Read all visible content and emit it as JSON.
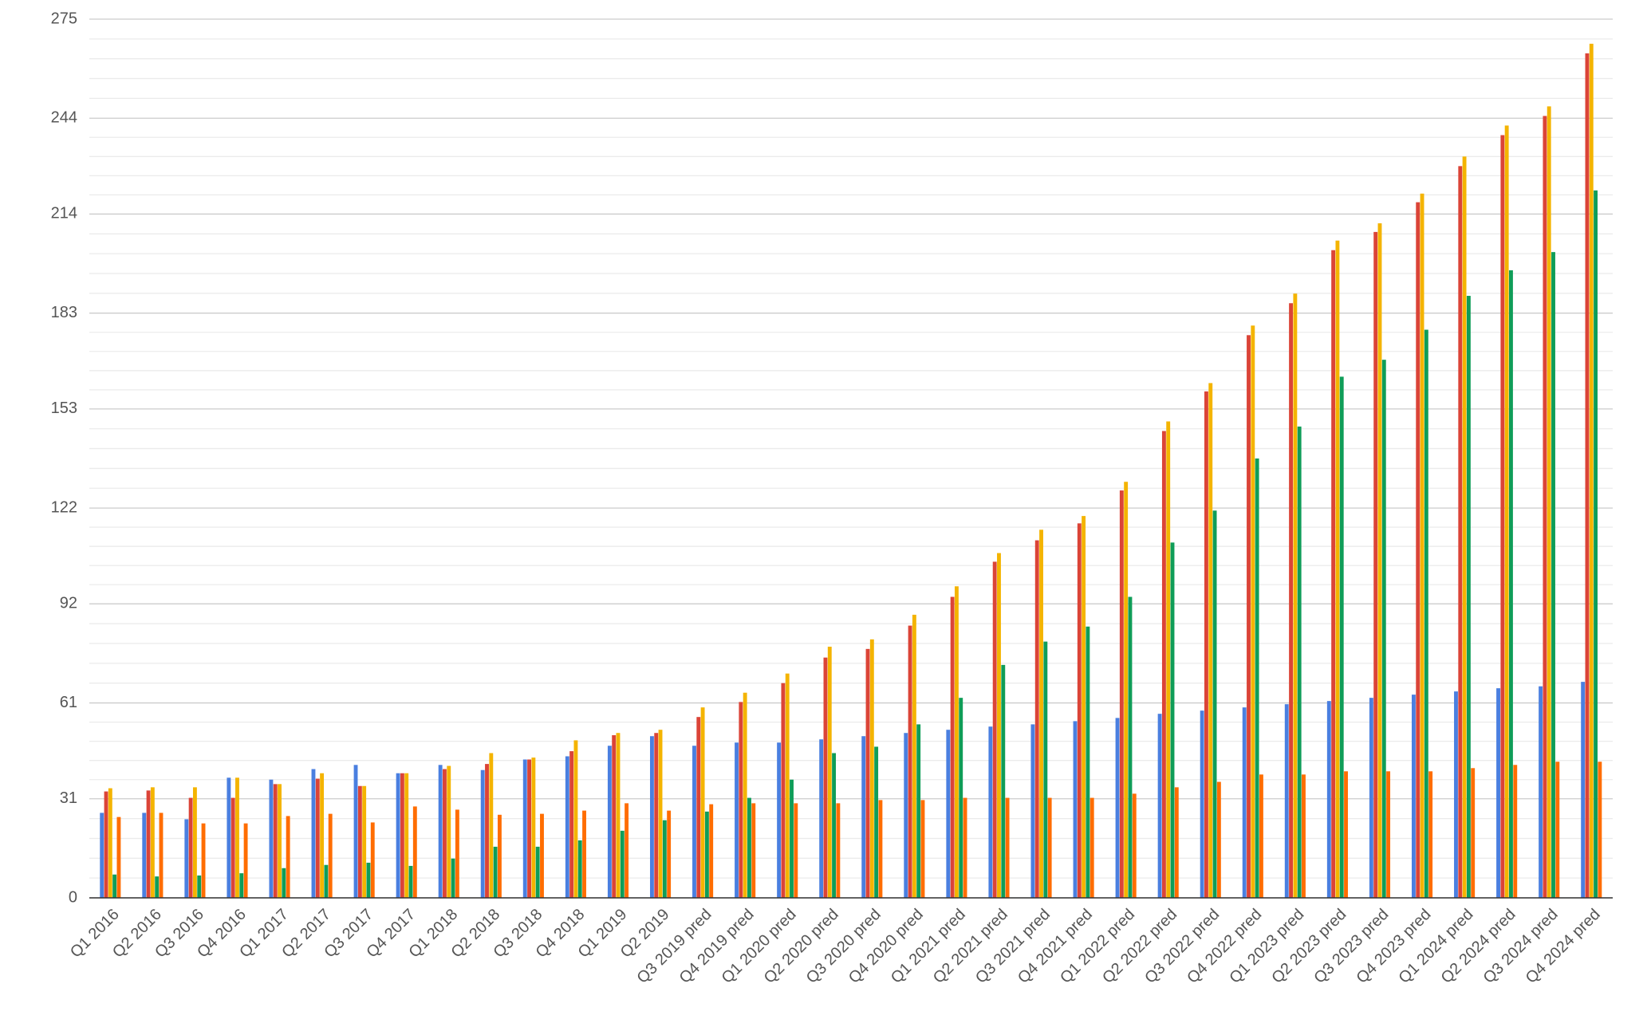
{
  "chart_data": {
    "type": "bar",
    "categories": [
      "Q1 2016",
      "Q2 2016",
      "Q3 2016",
      "Q4 2016",
      "Q1 2017",
      "Q2 2017",
      "Q3 2017",
      "Q4 2017",
      "Q1 2018",
      "Q2 2018",
      "Q3 2018",
      "Q4 2018",
      "Q1 2019",
      "Q2 2019",
      "Q3 2019 pred",
      "Q4 2019 pred",
      "Q1 2020 pred",
      "Q2 2020 pred",
      "Q3 2020 pred",
      "Q4 2020 pred",
      "Q1 2021 pred",
      "Q2 2021 pred",
      "Q3 2021 pred",
      "Q4 2021 pred",
      "Q1 2022 pred",
      "Q2 2022 pred",
      "Q3 2022 pred",
      "Q4 2022 pred",
      "Q1 2023 pred",
      "Q2 2023 pred",
      "Q3 2023 pred",
      "Q4 2023 pred",
      "Q1 2024 pred",
      "Q2 2024 pred",
      "Q3 2024 pred",
      "Q4 2024 pred"
    ],
    "series": [
      {
        "color": "#4a7fe0",
        "values": [
          26.6,
          26.6,
          24.6,
          37.6,
          37.0,
          40.3,
          41.6,
          39.0,
          41.6,
          40.0,
          43.3,
          44.3,
          47.6,
          50.6,
          47.6,
          48.6,
          48.6,
          49.6,
          50.6,
          51.6,
          52.6,
          53.6,
          54.3,
          55.3,
          56.3,
          57.6,
          58.6,
          59.6,
          60.6,
          61.6,
          62.6,
          63.6,
          64.6,
          65.6,
          66.2,
          67.6
        ]
      },
      {
        "color": "#db4437",
        "values": [
          33.3,
          33.6,
          31.3,
          31.3,
          35.6,
          37.3,
          35.0,
          39.0,
          40.3,
          41.9,
          43.3,
          45.9,
          50.9,
          51.6,
          56.6,
          61.3,
          67.2,
          75.2,
          77.9,
          85.2,
          94.2,
          105.2,
          111.9,
          117.2,
          127.5,
          146.1,
          158.5,
          176.1,
          186.1,
          202.7,
          208.4,
          217.7,
          229.0,
          238.7,
          244.7,
          264.3
        ]
      },
      {
        "color": "#f4b400",
        "values": [
          34.3,
          34.6,
          34.6,
          37.6,
          35.6,
          39.0,
          35.0,
          39.0,
          41.3,
          45.3,
          43.9,
          49.3,
          51.6,
          52.6,
          59.6,
          64.2,
          70.2,
          78.6,
          80.9,
          88.6,
          97.5,
          107.9,
          115.2,
          119.5,
          130.2,
          149.1,
          161.1,
          179.1,
          189.1,
          205.7,
          211.1,
          220.4,
          232.0,
          241.7,
          247.7,
          267.3
        ]
      },
      {
        "color": "#0f9d58",
        "values": [
          7.3,
          6.7,
          7.0,
          7.7,
          9.3,
          10.3,
          11.0,
          10.0,
          12.3,
          16.0,
          16.0,
          18.0,
          21.0,
          24.3,
          27.0,
          31.3,
          37.0,
          45.3,
          47.3,
          54.3,
          62.6,
          72.9,
          80.2,
          84.9,
          94.2,
          111.2,
          121.2,
          137.5,
          147.5,
          163.1,
          168.4,
          177.8,
          188.4,
          196.4,
          202.1,
          221.4
        ]
      },
      {
        "color": "#ff6d01",
        "values": [
          25.3,
          26.6,
          23.3,
          23.3,
          25.6,
          26.3,
          23.6,
          28.6,
          27.6,
          26.0,
          26.3,
          27.3,
          29.6,
          27.3,
          29.3,
          29.6,
          29.6,
          29.6,
          30.6,
          30.6,
          31.3,
          31.3,
          31.3,
          31.3,
          32.6,
          34.6,
          36.3,
          38.6,
          38.6,
          39.6,
          39.6,
          39.6,
          40.6,
          41.6,
          42.6,
          42.6
        ]
      }
    ],
    "ylim": [
      0,
      275
    ],
    "yticks": [
      0,
      31,
      61,
      92,
      122,
      153,
      183,
      214,
      244,
      275
    ],
    "grid": true
  }
}
